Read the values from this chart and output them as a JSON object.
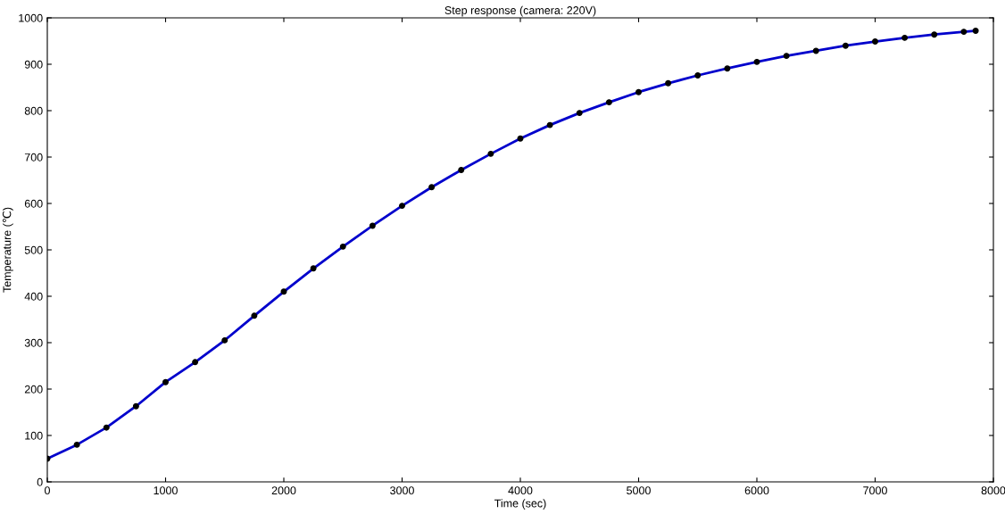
{
  "chart_data": {
    "type": "line",
    "title": "Step response (camera: 220V)",
    "xlabel": "Time (sec)",
    "ylabel": "Temperature (℃)",
    "x": [
      0,
      250,
      500,
      750,
      1000,
      1250,
      1500,
      1750,
      2000,
      2250,
      2500,
      2750,
      3000,
      3250,
      3500,
      3750,
      4000,
      4250,
      4500,
      4750,
      5000,
      5250,
      5500,
      5750,
      6000,
      6250,
      6500,
      6750,
      7000,
      7250,
      7500,
      7750,
      7850
    ],
    "series": [
      {
        "color": "#0000cc",
        "values": [
          50,
          80,
          117,
          163,
          215,
          258,
          305,
          358,
          410,
          460,
          507,
          552,
          595,
          635,
          672,
          707,
          740,
          769,
          795,
          818,
          840,
          859,
          876,
          891,
          905,
          918,
          929,
          940,
          949,
          957,
          964,
          970,
          972
        ]
      },
      {
        "type": "scatter",
        "color": "#000000",
        "marker": "circle",
        "values": [
          50,
          80,
          117,
          163,
          215,
          258,
          305,
          358,
          410,
          460,
          507,
          552,
          595,
          635,
          672,
          707,
          740,
          769,
          795,
          818,
          840,
          859,
          876,
          891,
          905,
          918,
          929,
          940,
          949,
          957,
          964,
          970,
          972
        ]
      }
    ],
    "xlim": [
      0,
      8000
    ],
    "xticks": [
      0,
      1000,
      2000,
      3000,
      4000,
      5000,
      6000,
      7000,
      8000
    ],
    "ylim": [
      0,
      1000
    ],
    "yticks": [
      0,
      100,
      200,
      300,
      400,
      500,
      600,
      700,
      800,
      900,
      1000
    ],
    "grid": false,
    "legend": false
  }
}
